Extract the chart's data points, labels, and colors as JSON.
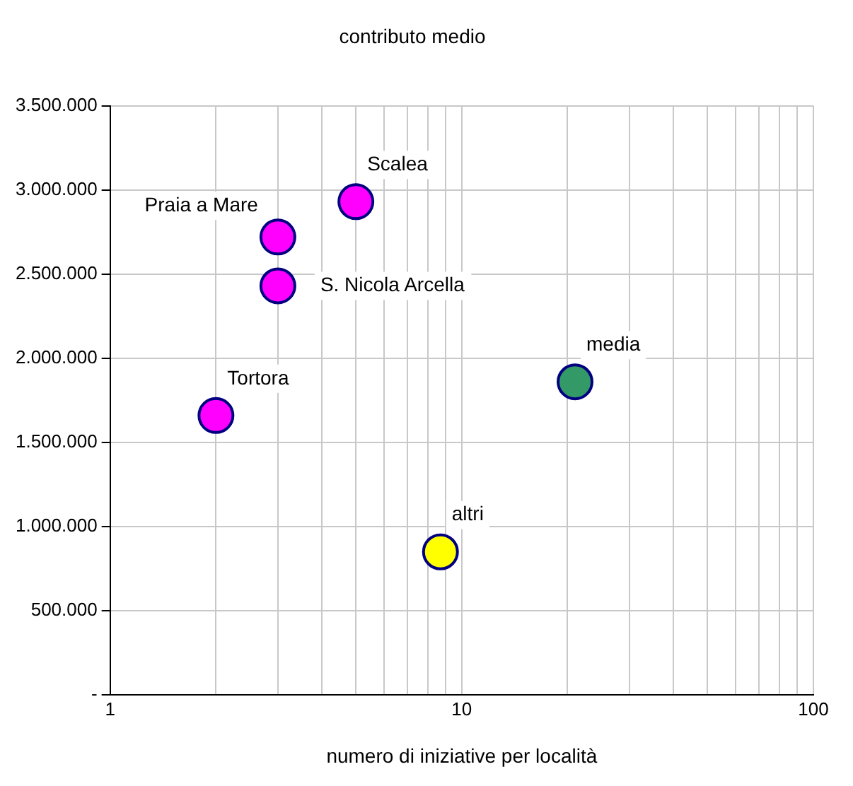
{
  "chart_data": {
    "type": "scatter",
    "title": "contributo medio",
    "xlabel": "numero di iniziative per località",
    "x": [
      2,
      3,
      3,
      5,
      8.7,
      21
    ],
    "values": [
      1660000,
      2720000,
      2430000,
      2930000,
      850000,
      1860000
    ],
    "colors": [
      "#ff00ff",
      "#ff00ff",
      "#ff00ff",
      "#ff00ff",
      "#ffff00",
      "#339966"
    ],
    "annotations": [
      {
        "text": "Tortora",
        "x": 2,
        "y": 1660000
      },
      {
        "text": "Praia a Mare",
        "x": 3,
        "y": 2720000
      },
      {
        "text": "S. Nicola Arcella",
        "x": 3,
        "y": 2430000
      },
      {
        "text": "Scalea",
        "x": 5,
        "y": 2930000
      },
      {
        "text": "altri",
        "x": 8.7,
        "y": 850000
      },
      {
        "text": "media",
        "x": 21,
        "y": 1860000
      }
    ],
    "log": "x",
    "xlim": [
      1,
      100
    ],
    "xticks": [
      1,
      {
        "value": 2,
        "label": null
      },
      {
        "value": 3,
        "label": null
      },
      {
        "value": 4,
        "label": null
      },
      {
        "value": 5,
        "label": null
      },
      {
        "value": 6,
        "label": null
      },
      {
        "value": 7,
        "label": null
      },
      {
        "value": 8,
        "label": null
      },
      {
        "value": 9,
        "label": null
      },
      10,
      {
        "value": 20,
        "label": null
      },
      {
        "value": 30,
        "label": null
      },
      {
        "value": 40,
        "label": null
      },
      {
        "value": 50,
        "label": null
      },
      {
        "value": 60,
        "label": null
      },
      {
        "value": 70,
        "label": null
      },
      {
        "value": 80,
        "label": null
      },
      {
        "value": 90,
        "label": null
      },
      100
    ],
    "ylim": [
      0,
      3500000
    ],
    "yticks": [
      {
        "value": 0,
        "label": "-"
      },
      {
        "value": 500000,
        "label": "500.000"
      },
      {
        "value": 1000000,
        "label": "1.000.000"
      },
      {
        "value": 1500000,
        "label": "1.500.000"
      },
      {
        "value": 2000000,
        "label": "2.000.000"
      },
      {
        "value": 2500000,
        "label": "2.500.000"
      },
      {
        "value": 3000000,
        "label": "3.000.000"
      },
      {
        "value": 3500000,
        "label": "3.500.000"
      }
    ],
    "grid": true,
    "marker": "circle",
    "legend": false
  }
}
